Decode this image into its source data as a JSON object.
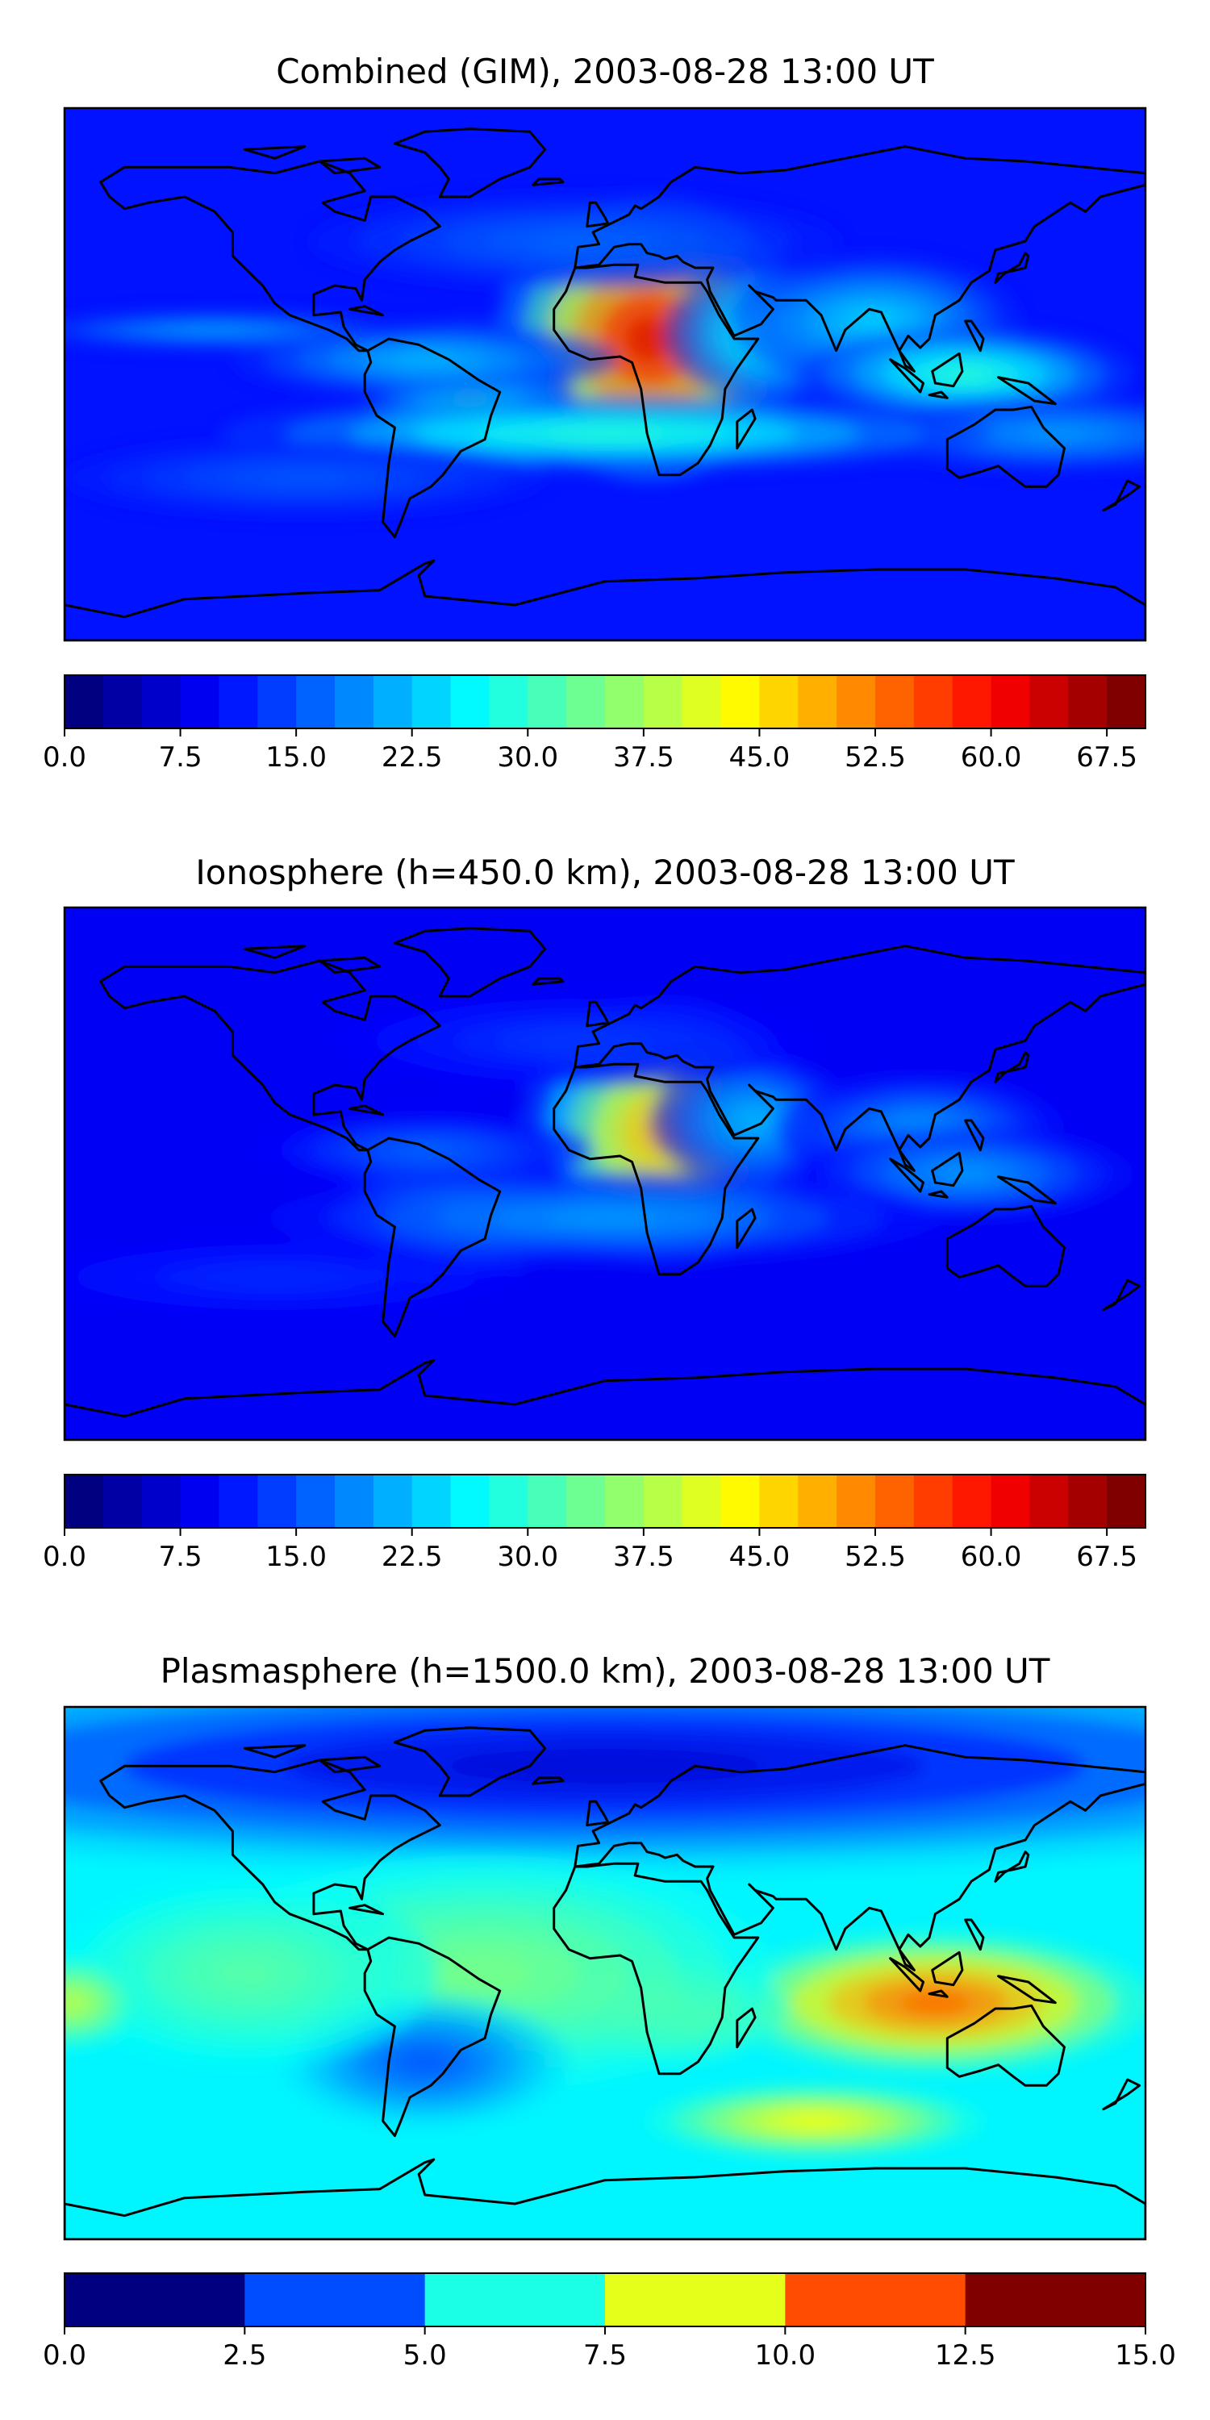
{
  "chart_data": [
    {
      "type": "heatmap",
      "title": "Combined (GIM), 2003-08-28 13:00 UT",
      "field": "combined",
      "colormap": "jet",
      "levels": {
        "min": 0.0,
        "max": 70.0,
        "step": 2.5
      },
      "colorbar_ticks": [
        "0.0",
        "7.5",
        "15.0",
        "22.5",
        "30.0",
        "37.5",
        "45.0",
        "52.5",
        "60.0",
        "67.5"
      ],
      "colorbar_tick_values": [
        0.0,
        7.5,
        15.0,
        22.5,
        30.0,
        37.5,
        45.0,
        52.5,
        60.0,
        67.5
      ],
      "peak_value": 64,
      "peak_region": "Central / North Africa",
      "grid": false
    },
    {
      "type": "heatmap",
      "title": "Ionosphere  (h=450.0 km), 2003-08-28 13:00 UT",
      "field": "ionosphere",
      "colormap": "jet",
      "levels": {
        "min": 0.0,
        "max": 70.0,
        "step": 2.5
      },
      "colorbar_ticks": [
        "0.0",
        "7.5",
        "15.0",
        "22.5",
        "30.0",
        "37.5",
        "45.0",
        "52.5",
        "60.0",
        "67.5"
      ],
      "colorbar_tick_values": [
        0.0,
        7.5,
        15.0,
        22.5,
        30.0,
        37.5,
        45.0,
        52.5,
        60.0,
        67.5
      ],
      "peak_value": 52,
      "peak_region": "North Africa / Arabia",
      "grid": false
    },
    {
      "type": "heatmap",
      "title": "Plasmasphere (h=1500.0 km), 2003-08-28 13:00 UT",
      "field": "plasmasphere",
      "colormap": "jet",
      "levels": {
        "min": 0.0,
        "max": 15.0,
        "step": 2.5
      },
      "colorbar_ticks": [
        "0.0",
        "2.5",
        "5.0",
        "7.5",
        "10.0",
        "12.5",
        "15.0"
      ],
      "colorbar_tick_values": [
        0.0,
        2.5,
        5.0,
        7.5,
        10.0,
        12.5,
        15.0
      ],
      "peak_value": 13.5,
      "peak_region": "Indian Ocean / Indonesia",
      "grid": false
    }
  ]
}
